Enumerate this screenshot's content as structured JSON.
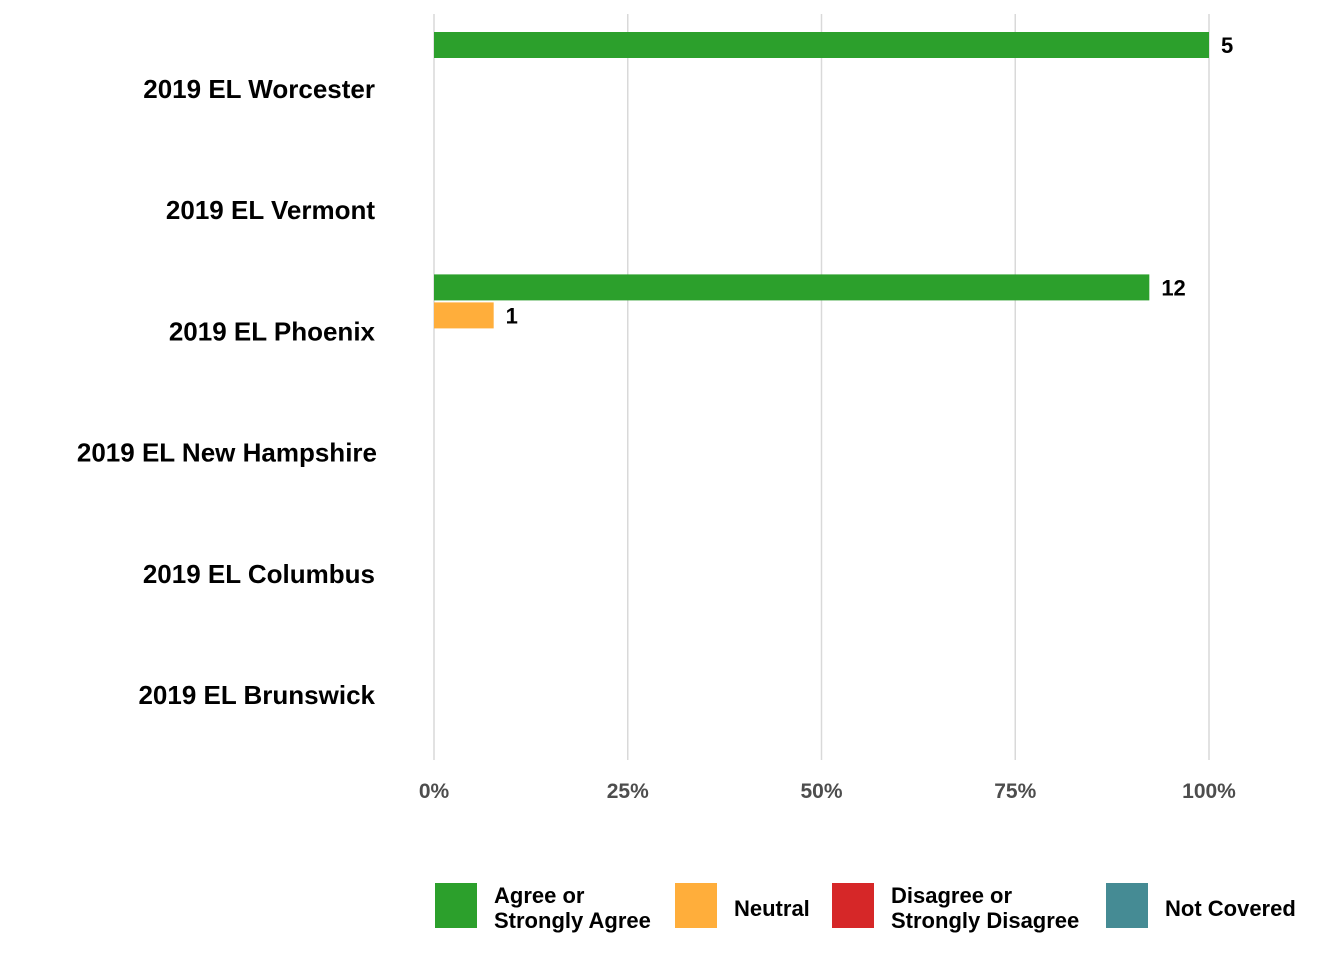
{
  "chart_data": {
    "type": "bar",
    "orientation": "horizontal",
    "categories": [
      "2019 EL Worcester",
      "2019 EL Vermont",
      "2019 EL Phoenix",
      "2019 EL New Hampshire",
      "2019 EL Columbus",
      "2019 EL Brunswick"
    ],
    "series": [
      {
        "name": "Agree or Strongly Agree",
        "color": "#2ca02c",
        "percent": [
          100,
          null,
          92.3,
          null,
          null,
          null
        ],
        "counts": [
          "5",
          null,
          "12",
          null,
          null,
          null
        ]
      },
      {
        "name": "Neutral",
        "color": "#ffae3b",
        "percent": [
          null,
          null,
          7.7,
          null,
          null,
          null
        ],
        "counts": [
          null,
          null,
          "1",
          null,
          null,
          null
        ]
      },
      {
        "name": "Disagree or Strongly Disagree",
        "color": "#d62728",
        "percent": [
          null,
          null,
          null,
          null,
          null,
          null
        ],
        "counts": [
          null,
          null,
          null,
          null,
          null,
          null
        ]
      },
      {
        "name": "Not Covered",
        "color": "#458b94",
        "percent": [
          null,
          null,
          null,
          null,
          null,
          null
        ],
        "counts": [
          null,
          null,
          null,
          null,
          null,
          null
        ]
      }
    ],
    "xticks": [
      "0%",
      "25%",
      "50%",
      "75%",
      "100%"
    ],
    "xlim": [
      0,
      100
    ],
    "grid": true,
    "legend_position": "bottom",
    "legend": [
      {
        "lines": [
          "Agree or",
          "Strongly Agree"
        ],
        "color": "#2ca02c"
      },
      {
        "lines": [
          "Neutral"
        ],
        "color": "#ffae3b"
      },
      {
        "lines": [
          "Disagree or",
          "Strongly Disagree"
        ],
        "color": "#d62728"
      },
      {
        "lines": [
          "Not Covered"
        ],
        "color": "#458b94"
      }
    ]
  }
}
